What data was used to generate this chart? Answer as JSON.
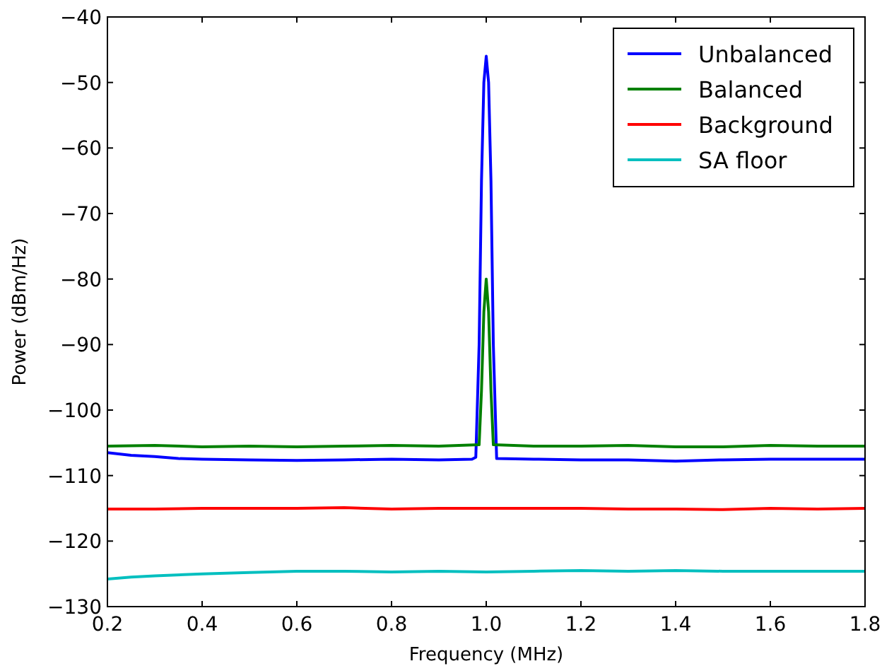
{
  "chart_data": {
    "type": "line",
    "xlabel": "Frequency (MHz)",
    "ylabel": "Power (dBm/Hz)",
    "xlim": [
      0.2,
      1.8
    ],
    "ylim": [
      -130,
      -40
    ],
    "xticks": [
      {
        "value": 0.2,
        "label": "0.2"
      },
      {
        "value": 0.4,
        "label": "0.4"
      },
      {
        "value": 0.6,
        "label": "0.6"
      },
      {
        "value": 0.8,
        "label": "0.8"
      },
      {
        "value": 1.0,
        "label": "1.0"
      },
      {
        "value": 1.2,
        "label": "1.2"
      },
      {
        "value": 1.4,
        "label": "1.4"
      },
      {
        "value": 1.6,
        "label": "1.6"
      },
      {
        "value": 1.8,
        "label": "1.8"
      }
    ],
    "yticks": [
      {
        "value": -130,
        "label": "−130"
      },
      {
        "value": -120,
        "label": "−120"
      },
      {
        "value": -110,
        "label": "−110"
      },
      {
        "value": -100,
        "label": "−100"
      },
      {
        "value": -90,
        "label": "−90"
      },
      {
        "value": -80,
        "label": "−80"
      },
      {
        "value": -70,
        "label": "−70"
      },
      {
        "value": -60,
        "label": "−60"
      },
      {
        "value": -50,
        "label": "−50"
      },
      {
        "value": -40,
        "label": "−40"
      }
    ],
    "grid": false,
    "legend": "top right",
    "line_style": "solid",
    "series": [
      {
        "name": "Unbalanced",
        "color": "#0000ff",
        "x": [
          0.2,
          0.25,
          0.3,
          0.35,
          0.4,
          0.5,
          0.6,
          0.7,
          0.8,
          0.9,
          0.97,
          0.978,
          0.985,
          0.99,
          0.995,
          1.0,
          1.005,
          1.01,
          1.015,
          1.022,
          1.1,
          1.2,
          1.3,
          1.4,
          1.5,
          1.6,
          1.7,
          1.8
        ],
        "values": [
          -106.5,
          -106.9,
          -107.1,
          -107.4,
          -107.5,
          -107.6,
          -107.7,
          -107.6,
          -107.5,
          -107.6,
          -107.5,
          -107.2,
          -90,
          -65,
          -50,
          -46,
          -50,
          -65,
          -90,
          -107.4,
          -107.5,
          -107.6,
          -107.6,
          -107.8,
          -107.6,
          -107.5,
          -107.5,
          -107.5
        ]
      },
      {
        "name": "Balanced",
        "color": "#008000",
        "x": [
          0.2,
          0.3,
          0.4,
          0.5,
          0.6,
          0.7,
          0.8,
          0.9,
          0.985,
          0.99,
          0.995,
          1.0,
          1.005,
          1.01,
          1.015,
          1.1,
          1.2,
          1.3,
          1.4,
          1.5,
          1.6,
          1.7,
          1.8
        ],
        "values": [
          -105.5,
          -105.4,
          -105.6,
          -105.5,
          -105.6,
          -105.5,
          -105.4,
          -105.5,
          -105.3,
          -97,
          -85,
          -80,
          -85,
          -97,
          -105.3,
          -105.5,
          -105.5,
          -105.4,
          -105.6,
          -105.6,
          -105.4,
          -105.5,
          -105.5
        ]
      },
      {
        "name": "Background",
        "color": "#ff0000",
        "x": [
          0.2,
          0.3,
          0.4,
          0.5,
          0.6,
          0.7,
          0.8,
          0.9,
          1.0,
          1.1,
          1.2,
          1.3,
          1.4,
          1.5,
          1.6,
          1.7,
          1.8
        ],
        "values": [
          -115.1,
          -115.1,
          -115.0,
          -115.0,
          -115.0,
          -114.9,
          -115.1,
          -115.0,
          -115.0,
          -115.0,
          -115.0,
          -115.1,
          -115.1,
          -115.2,
          -115.0,
          -115.1,
          -115.0
        ]
      },
      {
        "name": "SA floor",
        "color": "#00bfbf",
        "x": [
          0.2,
          0.25,
          0.3,
          0.4,
          0.5,
          0.6,
          0.7,
          0.8,
          0.9,
          1.0,
          1.1,
          1.2,
          1.3,
          1.4,
          1.5,
          1.6,
          1.7,
          1.8
        ],
        "values": [
          -125.8,
          -125.5,
          -125.3,
          -125.0,
          -124.8,
          -124.6,
          -124.6,
          -124.7,
          -124.6,
          -124.7,
          -124.6,
          -124.5,
          -124.6,
          -124.5,
          -124.6,
          -124.6,
          -124.6,
          -124.6
        ]
      }
    ]
  }
}
